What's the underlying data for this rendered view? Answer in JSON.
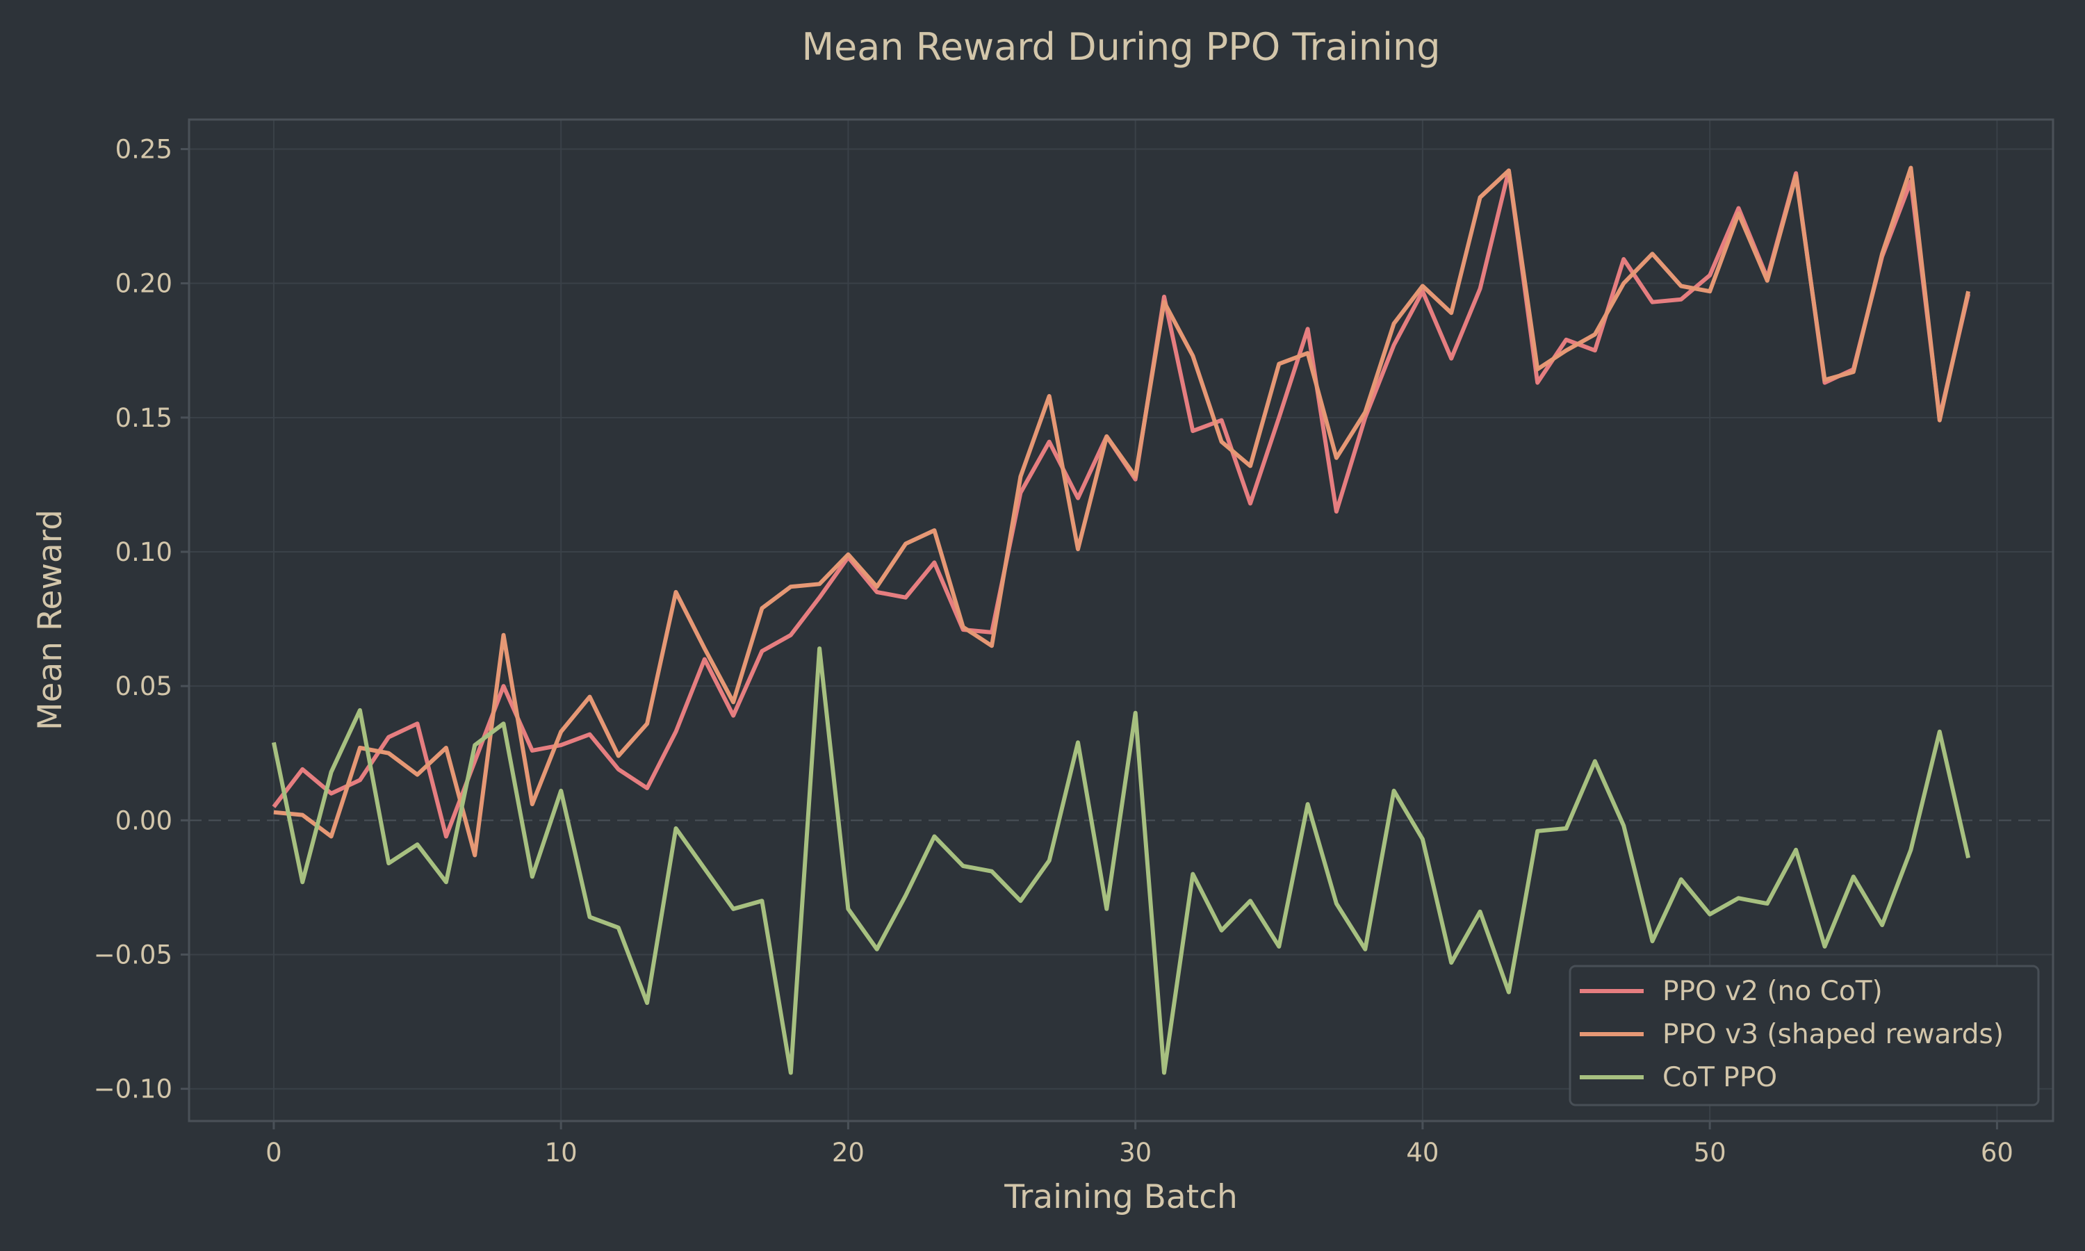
{
  "chart_data": {
    "type": "line",
    "title": "Mean Reward During PPO Training",
    "xlabel": "Training Batch",
    "ylabel": "Mean Reward",
    "xlim": [
      -2.95,
      61.95
    ],
    "ylim": [
      -0.112,
      0.261
    ],
    "xticks": [
      0,
      10,
      20,
      30,
      40,
      50,
      60
    ],
    "xtick_labels": [
      "0",
      "10",
      "20",
      "30",
      "40",
      "50",
      "60"
    ],
    "yticks": [
      -0.1,
      -0.05,
      0.0,
      0.05,
      0.1,
      0.15,
      0.2,
      0.25
    ],
    "ytick_labels": [
      "−0.10",
      "−0.05",
      "0.00",
      "0.05",
      "0.10",
      "0.15",
      "0.20",
      "0.25"
    ],
    "grid": true,
    "zero_line": "dashed",
    "legend_placement": "lower-right",
    "colors": {
      "background": "#2d3339",
      "text": "#d3c6aa",
      "grid": "#3a4148",
      "spine": "#4a5158"
    },
    "series": [
      {
        "name": "PPO v2 (no CoT)",
        "color": "#e67e80",
        "values": [
          0.005,
          0.019,
          0.01,
          0.015,
          0.031,
          0.036,
          -0.006,
          0.022,
          0.05,
          0.026,
          0.028,
          0.032,
          0.019,
          0.012,
          0.033,
          0.06,
          0.039,
          0.063,
          0.069,
          0.083,
          0.098,
          0.085,
          0.083,
          0.096,
          0.071,
          0.07,
          0.122,
          0.141,
          0.12,
          0.143,
          0.127,
          0.195,
          0.145,
          0.149,
          0.118,
          0.15,
          0.183,
          0.115,
          0.15,
          0.177,
          0.197,
          0.172,
          0.198,
          0.242,
          0.163,
          0.179,
          0.175,
          0.209,
          0.193,
          0.194,
          0.203,
          0.228,
          0.202,
          0.241,
          0.163,
          0.168,
          0.21,
          0.238,
          0.15,
          0.196
        ]
      },
      {
        "name": "PPO v3 (shaped rewards)",
        "color": "#e69875",
        "values": [
          0.003,
          0.002,
          -0.006,
          0.027,
          0.025,
          0.017,
          0.027,
          -0.013,
          0.069,
          0.006,
          0.033,
          0.046,
          0.024,
          0.036,
          0.085,
          0.064,
          0.044,
          0.079,
          0.087,
          0.088,
          0.099,
          0.087,
          0.103,
          0.108,
          0.072,
          0.065,
          0.128,
          0.158,
          0.101,
          0.143,
          0.128,
          0.193,
          0.173,
          0.141,
          0.132,
          0.17,
          0.174,
          0.135,
          0.152,
          0.185,
          0.199,
          0.189,
          0.232,
          0.242,
          0.168,
          0.175,
          0.181,
          0.2,
          0.211,
          0.199,
          0.197,
          0.226,
          0.201,
          0.24,
          0.164,
          0.167,
          0.211,
          0.243,
          0.149,
          0.197
        ]
      },
      {
        "name": "CoT PPO",
        "color": "#a7c080",
        "values": [
          0.029,
          -0.023,
          0.018,
          0.041,
          -0.016,
          -0.009,
          -0.023,
          0.028,
          0.036,
          -0.021,
          0.011,
          -0.036,
          -0.04,
          -0.068,
          -0.003,
          -0.018,
          -0.033,
          -0.03,
          -0.094,
          0.064,
          -0.033,
          -0.048,
          -0.028,
          -0.006,
          -0.017,
          -0.019,
          -0.03,
          -0.015,
          0.029,
          -0.033,
          0.04,
          -0.094,
          -0.02,
          -0.041,
          -0.03,
          -0.047,
          0.006,
          -0.031,
          -0.048,
          0.011,
          -0.007,
          -0.053,
          -0.034,
          -0.064,
          -0.004,
          -0.003,
          0.022,
          -0.002,
          -0.045,
          -0.022,
          -0.035,
          -0.029,
          -0.031,
          -0.011,
          -0.047,
          -0.021,
          -0.039,
          -0.011,
          0.033,
          -0.014
        ]
      }
    ]
  }
}
